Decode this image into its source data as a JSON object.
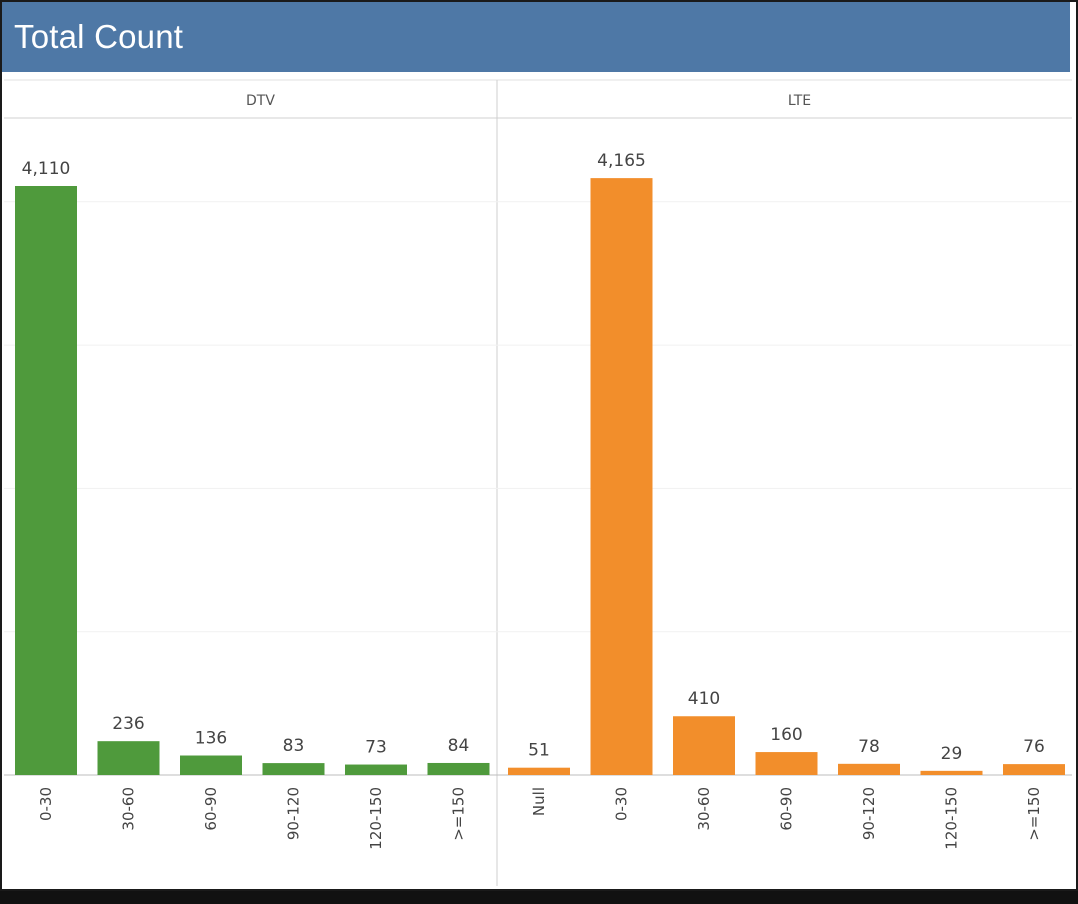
{
  "title": "Total Count",
  "chart_data": {
    "type": "bar",
    "title": "Total Count",
    "ylim": [
      0,
      4400
    ],
    "grid": true,
    "panels": [
      {
        "name": "DTV",
        "color": "#4f9a3c",
        "categories": [
          "0-30",
          "30-60",
          "60-90",
          "90-120",
          "120-150",
          ">=150"
        ],
        "values": [
          4110,
          236,
          136,
          83,
          73,
          84
        ],
        "labels": [
          "4,110",
          "236",
          "136",
          "83",
          "73",
          "84"
        ]
      },
      {
        "name": "LTE",
        "color": "#f28e2b",
        "categories": [
          "Null",
          "0-30",
          "30-60",
          "60-90",
          "90-120",
          "120-150",
          ">=150"
        ],
        "values": [
          51,
          4165,
          410,
          160,
          78,
          29,
          76
        ],
        "labels": [
          "51",
          "4,165",
          "410",
          "160",
          "78",
          "29",
          "76"
        ]
      }
    ]
  }
}
